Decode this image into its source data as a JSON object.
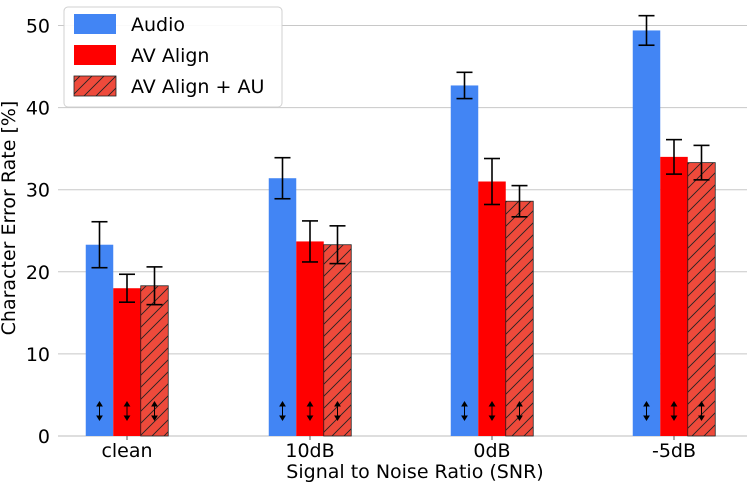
{
  "chart_data": {
    "type": "bar",
    "title": "",
    "xlabel": "Signal to Noise Ratio (SNR)",
    "ylabel": "Character Error Rate [%]",
    "categories": [
      "clean",
      "10dB",
      "0dB",
      "-5dB"
    ],
    "ylim": [
      0,
      52.5
    ],
    "yticks": [
      0,
      10,
      20,
      30,
      40,
      50
    ],
    "grid": "horizontal",
    "legend_position": "top-left",
    "series": [
      {
        "name": "Audio",
        "color": "#4285f4",
        "hatch": false,
        "values": [
          23.3,
          31.4,
          42.7,
          49.4
        ],
        "errors": [
          2.8,
          2.5,
          1.6,
          1.8
        ]
      },
      {
        "name": "AV Align",
        "color": "#ff0000",
        "hatch": false,
        "values": [
          18.0,
          23.7,
          31.0,
          34.0
        ],
        "errors": [
          1.7,
          2.5,
          2.8,
          2.1
        ]
      },
      {
        "name": "AV Align + AU",
        "color": "#ee4a3b",
        "hatch": true,
        "values": [
          18.3,
          23.3,
          28.6,
          33.3
        ],
        "errors": [
          2.3,
          2.3,
          1.9,
          2.1
        ]
      }
    ],
    "annotation_marker": "double-arrow",
    "colors": {
      "grid": "#c8c8c8",
      "arrow": "#000000",
      "errorbar": "#000000"
    }
  }
}
